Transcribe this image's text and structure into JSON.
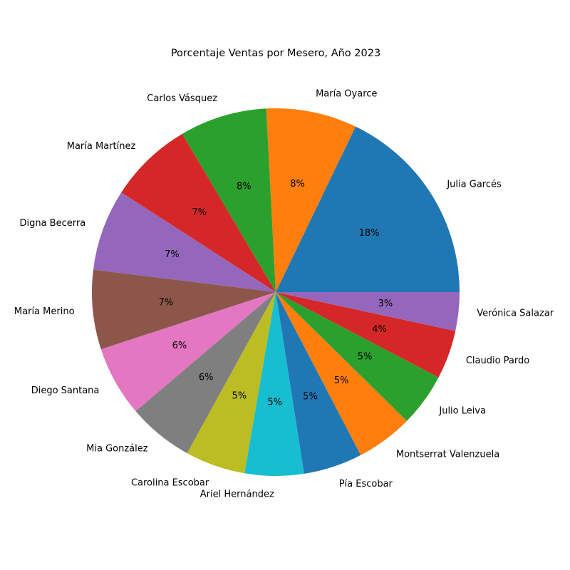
{
  "chart_data": {
    "type": "pie",
    "title": "Porcentaje Ventas por Mesero, Año 2023",
    "counterclock": true,
    "start_angle_deg": 0,
    "slices": [
      {
        "label": "Julia Garcés",
        "value": 17.9,
        "pct_text": "18%",
        "color": "#1f77b4"
      },
      {
        "label": "María Oyarce",
        "value": 8.0,
        "pct_text": "8%",
        "color": "#ff7f0e"
      },
      {
        "label": "Carlos Vásquez",
        "value": 7.7,
        "pct_text": "8%",
        "color": "#2ca02c"
      },
      {
        "label": "María Martínez",
        "value": 7.4,
        "pct_text": "7%",
        "color": "#d62728"
      },
      {
        "label": "Digna Becerra",
        "value": 7.2,
        "pct_text": "7%",
        "color": "#9467bd"
      },
      {
        "label": "María Merino",
        "value": 7.0,
        "pct_text": "7%",
        "color": "#8c564b"
      },
      {
        "label": "Diego Santana",
        "value": 6.2,
        "pct_text": "6%",
        "color": "#e377c2"
      },
      {
        "label": "Mia González",
        "value": 5.8,
        "pct_text": "6%",
        "color": "#7f7f7f"
      },
      {
        "label": "Carolina Escobar",
        "value": 5.3,
        "pct_text": "5%",
        "color": "#bcbd22"
      },
      {
        "label": "Ariel Hernández",
        "value": 5.2,
        "pct_text": "5%",
        "color": "#17becf"
      },
      {
        "label": "Pía Escobar",
        "value": 5.2,
        "pct_text": "5%",
        "color": "#1f77b4"
      },
      {
        "label": "Montserrat Valenzuela",
        "value": 5.0,
        "pct_text": "5%",
        "color": "#ff7f0e"
      },
      {
        "label": "Julio Leiva",
        "value": 4.7,
        "pct_text": "5%",
        "color": "#2ca02c"
      },
      {
        "label": "Claudio Pardo",
        "value": 4.3,
        "pct_text": "4%",
        "color": "#d62728"
      },
      {
        "label": "Verónica Salazar",
        "value": 3.4,
        "pct_text": "3%",
        "color": "#9467bd"
      }
    ]
  }
}
